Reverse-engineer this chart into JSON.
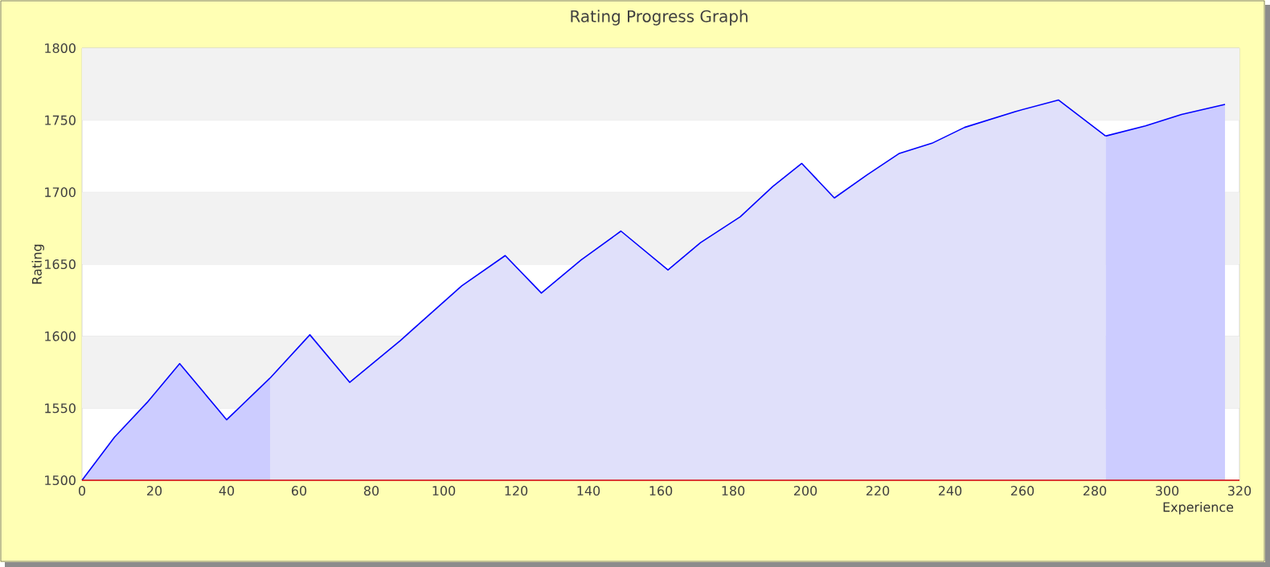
{
  "chart_data": {
    "type": "area",
    "title": "Rating Progress Graph",
    "xlabel": "Experience",
    "ylabel": "Rating",
    "series": [
      {
        "color": "#ccccff",
        "x": [
          0,
          9,
          18,
          27,
          40,
          52
        ],
        "values": [
          1500,
          1530,
          1554,
          1581,
          1542,
          1571
        ]
      },
      {
        "color": "#e0e0fa",
        "x": [
          52,
          63,
          74,
          88,
          105,
          117,
          127,
          138,
          149,
          162,
          171,
          182,
          191,
          199,
          208,
          217,
          226,
          235,
          244,
          258,
          270,
          283
        ],
        "values": [
          1571,
          1601,
          1568,
          1597,
          1635,
          1656,
          1630,
          1653,
          1673,
          1646,
          1665,
          1683,
          1704,
          1720,
          1696,
          1712,
          1727,
          1734,
          1745,
          1756,
          1764,
          1739
        ]
      },
      {
        "color": "#ccccff",
        "x": [
          283,
          294,
          304,
          316
        ],
        "values": [
          1739,
          1746,
          1754,
          1761
        ]
      }
    ],
    "xlim": [
      0,
      320
    ],
    "ylim": [
      1500,
      1800
    ],
    "xticks": [
      0,
      20,
      40,
      60,
      80,
      100,
      120,
      140,
      160,
      180,
      200,
      220,
      240,
      260,
      280,
      300,
      320
    ],
    "yticks": [
      1500,
      1550,
      1600,
      1650,
      1700,
      1750,
      1800
    ],
    "grid": "y"
  }
}
